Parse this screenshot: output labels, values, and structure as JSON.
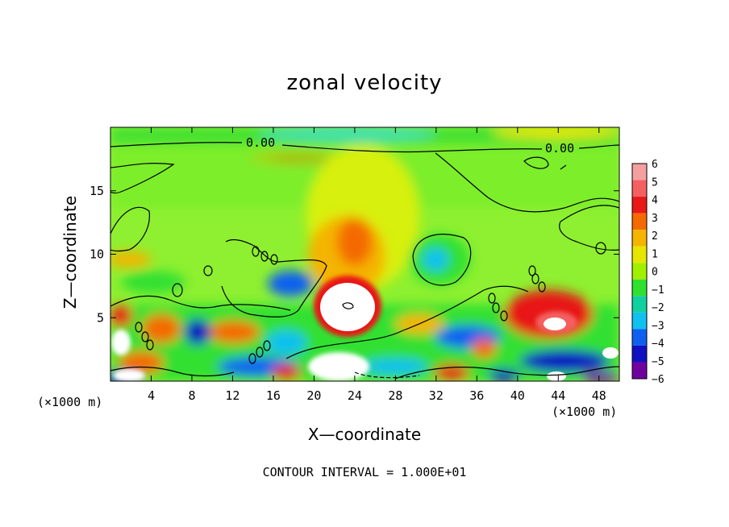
{
  "chart_data": {
    "type": "heatmap",
    "title": "zonal velocity",
    "xlabel": "X—coordinate",
    "ylabel": "Z—coordinate",
    "x_unit_left": "(×1000 m)",
    "x_unit_right": "(×1000 m)",
    "xlim": [
      0,
      50
    ],
    "ylim": [
      0,
      20
    ],
    "x_ticks": [
      4,
      8,
      12,
      16,
      20,
      24,
      28,
      32,
      36,
      40,
      44,
      48
    ],
    "y_ticks": [
      5,
      10,
      15
    ],
    "colorbar": {
      "min": -6,
      "max": 6,
      "labels": [
        "6",
        "5",
        "4",
        "3",
        "2",
        "1",
        "0",
        "−1",
        "−2",
        "−3",
        "−4",
        "−5",
        "−6"
      ],
      "colors": [
        "#f4a0a0",
        "#f46060",
        "#e81818",
        "#f46a00",
        "#f4b400",
        "#e6e600",
        "#a0f000",
        "#30e030",
        "#10d0a0",
        "#10c0f0",
        "#1060f0",
        "#1010c0",
        "#7000a0"
      ]
    },
    "contour_labels": [
      {
        "text": "0.00",
        "x": 11.5,
        "y": 18.5
      },
      {
        "text": "0.00",
        "x": 42.5,
        "y": 18.0
      }
    ],
    "footer": "CONTOUR INTERVAL = 1.000E+01"
  }
}
